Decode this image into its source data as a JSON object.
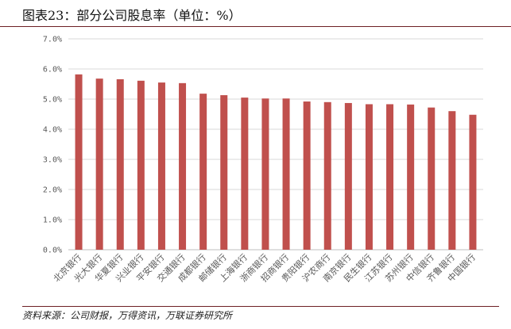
{
  "title": "图表23：部分公司股息率（单位：%）",
  "source": "资料来源：公司财报，万得资讯，万联证券研究所",
  "colors": {
    "bar": "#c0504d",
    "grid": "#d9d9d9",
    "axis": "#bfbfbf",
    "rule": "#6d1f24"
  },
  "chart_data": {
    "type": "bar",
    "categories": [
      "北京银行",
      "光大银行",
      "华夏银行",
      "兴业银行",
      "平安银行",
      "交通银行",
      "成都银行",
      "邮储银行",
      "上海银行",
      "浙商银行",
      "招商银行",
      "贵阳银行",
      "沪农商行",
      "南京银行",
      "民生银行",
      "江苏银行",
      "苏州银行",
      "中信银行",
      "齐鲁银行",
      "中国银行"
    ],
    "values": [
      5.82,
      5.68,
      5.66,
      5.61,
      5.55,
      5.53,
      5.18,
      5.13,
      5.05,
      5.02,
      5.02,
      4.92,
      4.9,
      4.87,
      4.83,
      4.83,
      4.82,
      4.72,
      4.6,
      4.48
    ],
    "yticks": [
      "0.0%",
      "1.0%",
      "2.0%",
      "3.0%",
      "4.0%",
      "5.0%",
      "6.0%",
      "7.0%"
    ],
    "ylim": [
      0,
      7
    ],
    "grid": true,
    "legend": "none"
  }
}
